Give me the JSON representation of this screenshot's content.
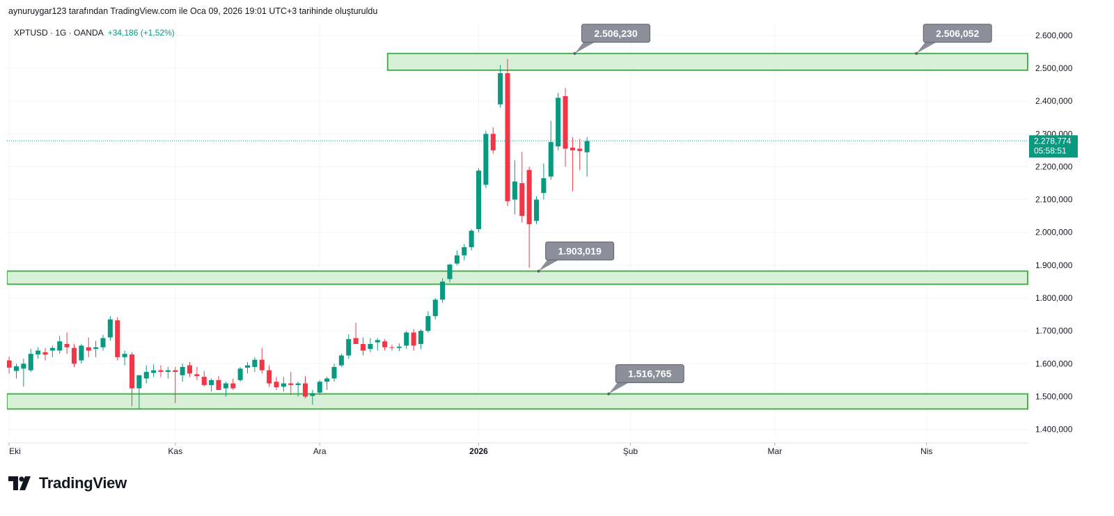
{
  "header": {
    "attribution": "aynuruygar123 tarafından TradingView.com ile Oca 09, 2026 19:01 UTC+3 tarihinde oluşturuldu"
  },
  "legend": {
    "symbol": "XPTUSD · 1G · OANDA",
    "change": "+34,186 (+1,52%)"
  },
  "brand": {
    "name": "TradingView"
  },
  "colors": {
    "up": "#089981",
    "down": "#f23645",
    "zone_fill": "#d8efd8",
    "zone_stroke": "#4caf50",
    "callout": "#8c8f99"
  },
  "chart_data": {
    "type": "candlestick",
    "title": "XPTUSD · 1G · OANDA",
    "ylim": [
      1380000,
      2640000
    ],
    "y_ticks": [
      {
        "value": 1400000,
        "label": "1.400,000"
      },
      {
        "value": 1500000,
        "label": "1.500,000"
      },
      {
        "value": 1600000,
        "label": "1.600,000"
      },
      {
        "value": 1700000,
        "label": "1.700,000"
      },
      {
        "value": 1800000,
        "label": "1.800,000"
      },
      {
        "value": 1900000,
        "label": "1.900,000"
      },
      {
        "value": 2000000,
        "label": "2.000,000"
      },
      {
        "value": 2100000,
        "label": "2.100,000"
      },
      {
        "value": 2200000,
        "label": "2.200,000"
      },
      {
        "value": 2300000,
        "label": "2.300,000"
      },
      {
        "value": 2400000,
        "label": "2.400,000"
      },
      {
        "value": 2500000,
        "label": "2.500,000"
      },
      {
        "value": 2600000,
        "label": "2.600,000"
      }
    ],
    "x_ticks": [
      {
        "index": 0,
        "label": "Eki",
        "bold": false
      },
      {
        "index": 23,
        "label": "Kas",
        "bold": false
      },
      {
        "index": 43,
        "label": "Ara",
        "bold": false
      },
      {
        "index": 65,
        "label": "2026",
        "bold": true
      },
      {
        "index": 86,
        "label": "Şub",
        "bold": false
      },
      {
        "index": 106,
        "label": "Mar",
        "bold": false
      },
      {
        "index": 127,
        "label": "Nis",
        "bold": false
      }
    ],
    "x_range": [
      -0.3,
      141
    ],
    "last_price": {
      "value": 2278774,
      "label": "2.278,774",
      "countdown": "05:58:51"
    },
    "zones": [
      {
        "from": 2494000,
        "to": 2545000,
        "start_index": 52.4,
        "label_left": "2.506,230",
        "label_left_index": 78.3,
        "label_right": "2.506,052",
        "label_right_index": 125.6
      },
      {
        "from": 1842000,
        "to": 1882000,
        "start_index": -0.3,
        "label_left": "1.903,019",
        "label_left_index": 73.3
      },
      {
        "from": 1462000,
        "to": 1508000,
        "start_index": -0.3,
        "label_left": "1.516,765",
        "label_left_index": 83.0
      }
    ],
    "candles": [
      {
        "o": 1610000,
        "h": 1622000,
        "l": 1570000,
        "c": 1588000
      },
      {
        "o": 1578000,
        "h": 1600000,
        "l": 1555000,
        "c": 1592000
      },
      {
        "o": 1585000,
        "h": 1615000,
        "l": 1530000,
        "c": 1600000
      },
      {
        "o": 1580000,
        "h": 1645000,
        "l": 1575000,
        "c": 1630000
      },
      {
        "o": 1628000,
        "h": 1650000,
        "l": 1615000,
        "c": 1640000
      },
      {
        "o": 1635000,
        "h": 1648000,
        "l": 1610000,
        "c": 1628000
      },
      {
        "o": 1640000,
        "h": 1655000,
        "l": 1620000,
        "c": 1648000
      },
      {
        "o": 1640000,
        "h": 1685000,
        "l": 1630000,
        "c": 1668000
      },
      {
        "o": 1660000,
        "h": 1695000,
        "l": 1630000,
        "c": 1650000
      },
      {
        "o": 1648000,
        "h": 1660000,
        "l": 1590000,
        "c": 1600000
      },
      {
        "o": 1610000,
        "h": 1660000,
        "l": 1600000,
        "c": 1655000
      },
      {
        "o": 1650000,
        "h": 1680000,
        "l": 1620000,
        "c": 1640000
      },
      {
        "o": 1645000,
        "h": 1670000,
        "l": 1620000,
        "c": 1650000
      },
      {
        "o": 1650000,
        "h": 1688000,
        "l": 1640000,
        "c": 1678000
      },
      {
        "o": 1680000,
        "h": 1745000,
        "l": 1670000,
        "c": 1735000
      },
      {
        "o": 1732000,
        "h": 1742000,
        "l": 1610000,
        "c": 1620000
      },
      {
        "o": 1620000,
        "h": 1640000,
        "l": 1595000,
        "c": 1630000
      },
      {
        "o": 1628000,
        "h": 1635000,
        "l": 1470000,
        "c": 1525000
      },
      {
        "o": 1525000,
        "h": 1560000,
        "l": 1462000,
        "c": 1565000
      },
      {
        "o": 1555000,
        "h": 1595000,
        "l": 1540000,
        "c": 1575000
      },
      {
        "o": 1572000,
        "h": 1598000,
        "l": 1560000,
        "c": 1580000
      },
      {
        "o": 1580000,
        "h": 1595000,
        "l": 1560000,
        "c": 1575000
      },
      {
        "o": 1575000,
        "h": 1590000,
        "l": 1555000,
        "c": 1580000
      },
      {
        "o": 1580000,
        "h": 1590000,
        "l": 1480000,
        "c": 1575000
      },
      {
        "o": 1565000,
        "h": 1600000,
        "l": 1545000,
        "c": 1590000
      },
      {
        "o": 1595000,
        "h": 1605000,
        "l": 1560000,
        "c": 1570000
      },
      {
        "o": 1568000,
        "h": 1590000,
        "l": 1550000,
        "c": 1562000
      },
      {
        "o": 1560000,
        "h": 1578000,
        "l": 1530000,
        "c": 1535000
      },
      {
        "o": 1535000,
        "h": 1555000,
        "l": 1515000,
        "c": 1550000
      },
      {
        "o": 1550000,
        "h": 1562000,
        "l": 1520000,
        "c": 1520000
      },
      {
        "o": 1525000,
        "h": 1545000,
        "l": 1500000,
        "c": 1540000
      },
      {
        "o": 1540000,
        "h": 1555000,
        "l": 1520000,
        "c": 1525000
      },
      {
        "o": 1550000,
        "h": 1590000,
        "l": 1545000,
        "c": 1585000
      },
      {
        "o": 1588000,
        "h": 1605000,
        "l": 1570000,
        "c": 1595000
      },
      {
        "o": 1590000,
        "h": 1620000,
        "l": 1575000,
        "c": 1612000
      },
      {
        "o": 1612000,
        "h": 1648000,
        "l": 1570000,
        "c": 1580000
      },
      {
        "o": 1580000,
        "h": 1595000,
        "l": 1530000,
        "c": 1540000
      },
      {
        "o": 1545000,
        "h": 1560000,
        "l": 1520000,
        "c": 1528000
      },
      {
        "o": 1530000,
        "h": 1560000,
        "l": 1515000,
        "c": 1540000
      },
      {
        "o": 1540000,
        "h": 1575000,
        "l": 1505000,
        "c": 1535000
      },
      {
        "o": 1535000,
        "h": 1545000,
        "l": 1500000,
        "c": 1540000
      },
      {
        "o": 1540000,
        "h": 1562000,
        "l": 1495000,
        "c": 1500000
      },
      {
        "o": 1502000,
        "h": 1520000,
        "l": 1475000,
        "c": 1510000
      },
      {
        "o": 1512000,
        "h": 1550000,
        "l": 1505000,
        "c": 1545000
      },
      {
        "o": 1545000,
        "h": 1560000,
        "l": 1520000,
        "c": 1555000
      },
      {
        "o": 1555000,
        "h": 1600000,
        "l": 1545000,
        "c": 1590000
      },
      {
        "o": 1595000,
        "h": 1630000,
        "l": 1590000,
        "c": 1625000
      },
      {
        "o": 1625000,
        "h": 1690000,
        "l": 1615000,
        "c": 1675000
      },
      {
        "o": 1678000,
        "h": 1725000,
        "l": 1660000,
        "c": 1660000
      },
      {
        "o": 1660000,
        "h": 1680000,
        "l": 1625000,
        "c": 1640000
      },
      {
        "o": 1645000,
        "h": 1678000,
        "l": 1635000,
        "c": 1660000
      },
      {
        "o": 1665000,
        "h": 1678000,
        "l": 1640000,
        "c": 1672000
      },
      {
        "o": 1668000,
        "h": 1675000,
        "l": 1640000,
        "c": 1650000
      },
      {
        "o": 1650000,
        "h": 1658000,
        "l": 1640000,
        "c": 1648000
      },
      {
        "o": 1648000,
        "h": 1662000,
        "l": 1638000,
        "c": 1652000
      },
      {
        "o": 1655000,
        "h": 1700000,
        "l": 1645000,
        "c": 1695000
      },
      {
        "o": 1695000,
        "h": 1705000,
        "l": 1640000,
        "c": 1655000
      },
      {
        "o": 1660000,
        "h": 1705000,
        "l": 1645000,
        "c": 1700000
      },
      {
        "o": 1700000,
        "h": 1760000,
        "l": 1695000,
        "c": 1745000
      },
      {
        "o": 1745000,
        "h": 1800000,
        "l": 1735000,
        "c": 1795000
      },
      {
        "o": 1795000,
        "h": 1860000,
        "l": 1785000,
        "c": 1850000
      },
      {
        "o": 1858000,
        "h": 1905000,
        "l": 1848000,
        "c": 1902000
      },
      {
        "o": 1905000,
        "h": 1945000,
        "l": 1900000,
        "c": 1930000
      },
      {
        "o": 1930000,
        "h": 1965000,
        "l": 1915000,
        "c": 1955000
      },
      {
        "o": 1955000,
        "h": 2010000,
        "l": 1945000,
        "c": 2005000
      },
      {
        "o": 2010000,
        "h": 2195000,
        "l": 2000000,
        "c": 2188000
      },
      {
        "o": 2145000,
        "h": 2310000,
        "l": 2135000,
        "c": 2300000
      },
      {
        "o": 2300000,
        "h": 2320000,
        "l": 2240000,
        "c": 2250000
      },
      {
        "o": 2390000,
        "h": 2510000,
        "l": 2380000,
        "c": 2485000
      },
      {
        "o": 2485000,
        "h": 2528000,
        "l": 2080000,
        "c": 2095000
      },
      {
        "o": 2100000,
        "h": 2220000,
        "l": 2055000,
        "c": 2155000
      },
      {
        "o": 2150000,
        "h": 2245000,
        "l": 2030000,
        "c": 2050000
      },
      {
        "o": 2190000,
        "h": 2200000,
        "l": 1892000,
        "c": 2025000
      },
      {
        "o": 2035000,
        "h": 2110000,
        "l": 2025000,
        "c": 2100000
      },
      {
        "o": 2120000,
        "h": 2210000,
        "l": 2100000,
        "c": 2165000
      },
      {
        "o": 2170000,
        "h": 2340000,
        "l": 2160000,
        "c": 2275000
      },
      {
        "o": 2262000,
        "h": 2425000,
        "l": 2250000,
        "c": 2410000
      },
      {
        "o": 2415000,
        "h": 2440000,
        "l": 2200000,
        "c": 2255000
      },
      {
        "o": 2258000,
        "h": 2290000,
        "l": 2125000,
        "c": 2250000
      },
      {
        "o": 2255000,
        "h": 2285000,
        "l": 2190000,
        "c": 2248000
      },
      {
        "o": 2244000,
        "h": 2290000,
        "l": 2170000,
        "c": 2278000
      }
    ]
  }
}
